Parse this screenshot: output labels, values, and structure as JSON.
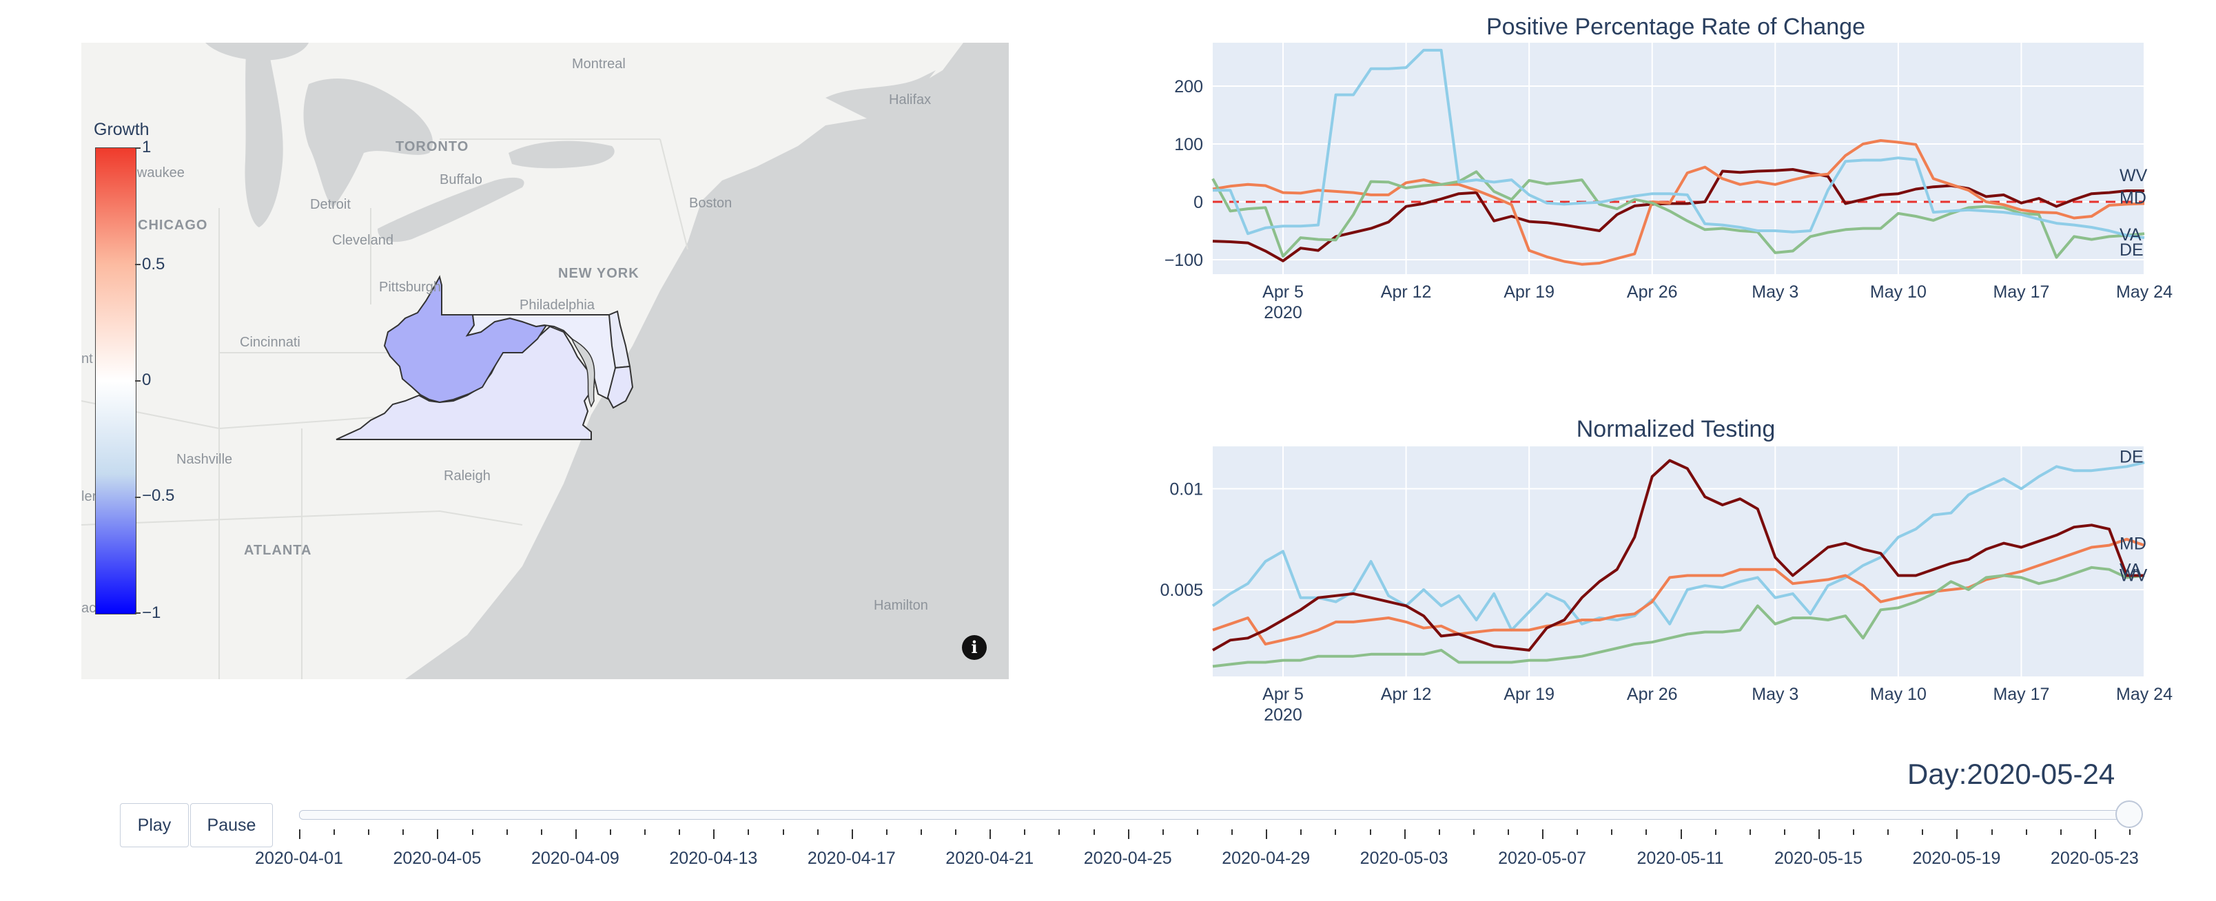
{
  "map": {
    "colorbar_title": "Growth",
    "colorbar_ticks": [
      "1",
      "0.5",
      "0",
      "−0.5",
      "−1"
    ],
    "colorscale": [
      "#ef3b2c",
      "#ffffff",
      "#0000ff"
    ],
    "cities": [
      {
        "name": "Montreal",
        "big": false
      },
      {
        "name": "Halifax",
        "big": false
      },
      {
        "name": "ilwaukee",
        "big": false
      },
      {
        "name": "TORONTO",
        "big": true
      },
      {
        "name": "Buffalo",
        "big": false
      },
      {
        "name": "Detroit",
        "big": false
      },
      {
        "name": "CHICAGO",
        "big": true
      },
      {
        "name": "Boston",
        "big": false
      },
      {
        "name": "Cleveland",
        "big": false
      },
      {
        "name": "Pittsburgh",
        "big": false
      },
      {
        "name": "NEW YORK",
        "big": true
      },
      {
        "name": "Philadelphia",
        "big": false
      },
      {
        "name": "Cincinnati",
        "big": false
      },
      {
        "name": "Nashville",
        "big": false
      },
      {
        "name": "Raleigh",
        "big": false
      },
      {
        "name": "ATLANTA",
        "big": true
      },
      {
        "name": "Hamilton",
        "big": false
      },
      {
        "name": "nt",
        "big": false
      },
      {
        "name": "ler",
        "big": false
      },
      {
        "name": "ac",
        "big": false
      }
    ],
    "info_icon": "i",
    "state_colors": {
      "WV": "#abaff8",
      "VA": "#e4e5fb",
      "MD": "#eceefc",
      "DE": "#e8eaf8"
    }
  },
  "chart_data": [
    {
      "type": "line",
      "title": "Positive Percentage Rate of Change",
      "x_dates": [
        "2020-04-01",
        "2020-04-02",
        "2020-04-03",
        "2020-04-04",
        "2020-04-05",
        "2020-04-06",
        "2020-04-07",
        "2020-04-08",
        "2020-04-09",
        "2020-04-10",
        "2020-04-11",
        "2020-04-12",
        "2020-04-13",
        "2020-04-14",
        "2020-04-15",
        "2020-04-16",
        "2020-04-17",
        "2020-04-18",
        "2020-04-19",
        "2020-04-20",
        "2020-04-21",
        "2020-04-22",
        "2020-04-23",
        "2020-04-24",
        "2020-04-25",
        "2020-04-26",
        "2020-04-27",
        "2020-04-28",
        "2020-04-29",
        "2020-04-30",
        "2020-05-01",
        "2020-05-02",
        "2020-05-03",
        "2020-05-04",
        "2020-05-05",
        "2020-05-06",
        "2020-05-07",
        "2020-05-08",
        "2020-05-09",
        "2020-05-10",
        "2020-05-11",
        "2020-05-12",
        "2020-05-13",
        "2020-05-14",
        "2020-05-15",
        "2020-05-16",
        "2020-05-17",
        "2020-05-18",
        "2020-05-19",
        "2020-05-20",
        "2020-05-21",
        "2020-05-22",
        "2020-05-23",
        "2020-05-24"
      ],
      "x_ticks": [
        "Apr 5",
        "Apr 12",
        "Apr 19",
        "Apr 26",
        "May 3",
        "May 10",
        "May 17",
        "May 24"
      ],
      "x_year": "2020",
      "y_ticks": [
        "200",
        "100",
        "0",
        "−100"
      ],
      "ylim": [
        -125,
        275
      ],
      "reference_line": {
        "y": 0,
        "color": "#e8322d",
        "style": "dashed"
      },
      "series": [
        {
          "name": "WV",
          "color": "#7a0c0c",
          "values": [
            -68,
            -69,
            -71,
            -85,
            -102,
            -80,
            -84,
            -60,
            -53,
            -46,
            -35,
            -8,
            -3,
            5,
            14,
            16,
            -33,
            -25,
            -34,
            -36,
            -40,
            -45,
            -50,
            -22,
            -7,
            -4,
            -3,
            -3,
            0,
            53,
            51,
            53,
            54,
            56,
            50,
            44,
            -3,
            4,
            12,
            14,
            22,
            26,
            28,
            23,
            9,
            12,
            -2,
            6,
            -8,
            4,
            14,
            16,
            19,
            19
          ]
        },
        {
          "name": "MD",
          "color": "#f07f52",
          "values": [
            22,
            27,
            30,
            28,
            16,
            15,
            20,
            18,
            16,
            12,
            12,
            33,
            38,
            30,
            30,
            20,
            8,
            -5,
            -84,
            -95,
            -103,
            -108,
            -106,
            -98,
            -90,
            0,
            -2,
            50,
            60,
            40,
            30,
            35,
            30,
            38,
            45,
            48,
            80,
            100,
            106,
            103,
            99,
            40,
            30,
            20,
            0,
            -5,
            -14,
            -18,
            -19,
            -28,
            -25,
            -6,
            -4,
            -3
          ]
        },
        {
          "name": "VA",
          "color": "#8cbf8b",
          "values": [
            40,
            -16,
            -12,
            -10,
            -94,
            -62,
            -65,
            -66,
            -22,
            35,
            34,
            24,
            28,
            30,
            35,
            52,
            18,
            4,
            37,
            31,
            34,
            38,
            -4,
            -12,
            4,
            -2,
            -16,
            -33,
            -48,
            -46,
            -50,
            -52,
            -88,
            -85,
            -60,
            -53,
            -48,
            -46,
            -46,
            -20,
            -25,
            -32,
            -20,
            -10,
            -8,
            -10,
            -20,
            -22,
            -96,
            -60,
            -65,
            -60,
            -58,
            -55
          ]
        },
        {
          "name": "DE",
          "color": "#8fcde8",
          "values": [
            20,
            20,
            -55,
            -45,
            -42,
            -42,
            -40,
            185,
            185,
            230,
            230,
            232,
            262,
            262,
            34,
            38,
            34,
            38,
            12,
            -2,
            -4,
            -2,
            -1,
            5,
            10,
            14,
            14,
            12,
            -38,
            -40,
            -44,
            -50,
            -50,
            -52,
            -50,
            20,
            70,
            72,
            72,
            76,
            73,
            -18,
            -16,
            -14,
            -16,
            -18,
            -22,
            -30,
            -37,
            -40,
            -44,
            -50,
            -58,
            -62
          ]
        }
      ]
    },
    {
      "type": "line",
      "title": "Normalized Testing",
      "x_dates": [
        "2020-04-01",
        "2020-04-02",
        "2020-04-03",
        "2020-04-04",
        "2020-04-05",
        "2020-04-06",
        "2020-04-07",
        "2020-04-08",
        "2020-04-09",
        "2020-04-10",
        "2020-04-11",
        "2020-04-12",
        "2020-04-13",
        "2020-04-14",
        "2020-04-15",
        "2020-04-16",
        "2020-04-17",
        "2020-04-18",
        "2020-04-19",
        "2020-04-20",
        "2020-04-21",
        "2020-04-22",
        "2020-04-23",
        "2020-04-24",
        "2020-04-25",
        "2020-04-26",
        "2020-04-27",
        "2020-04-28",
        "2020-04-29",
        "2020-04-30",
        "2020-05-01",
        "2020-05-02",
        "2020-05-03",
        "2020-05-04",
        "2020-05-05",
        "2020-05-06",
        "2020-05-07",
        "2020-05-08",
        "2020-05-09",
        "2020-05-10",
        "2020-05-11",
        "2020-05-12",
        "2020-05-13",
        "2020-05-14",
        "2020-05-15",
        "2020-05-16",
        "2020-05-17",
        "2020-05-18",
        "2020-05-19",
        "2020-05-20",
        "2020-05-21",
        "2020-05-22",
        "2020-05-23",
        "2020-05-24"
      ],
      "x_ticks": [
        "Apr 5",
        "Apr 12",
        "Apr 19",
        "Apr 26",
        "May 3",
        "May 10",
        "May 17",
        "May 24"
      ],
      "x_year": "2020",
      "y_ticks": [
        "0.01",
        "0.005"
      ],
      "ylim": [
        0.0007,
        0.0121
      ],
      "series": [
        {
          "name": "DE",
          "color": "#8fcde8",
          "values": [
            0.0042,
            0.0048,
            0.0053,
            0.0064,
            0.0069,
            0.0046,
            0.0046,
            0.0044,
            0.0049,
            0.0064,
            0.0047,
            0.0042,
            0.005,
            0.0042,
            0.0047,
            0.0035,
            0.0048,
            0.003,
            0.0039,
            0.0048,
            0.0044,
            0.0033,
            0.0036,
            0.0035,
            0.0037,
            0.0045,
            0.0033,
            0.005,
            0.0052,
            0.0051,
            0.0054,
            0.0056,
            0.0046,
            0.0048,
            0.0038,
            0.0052,
            0.0056,
            0.0062,
            0.0066,
            0.0076,
            0.008,
            0.0087,
            0.0088,
            0.0097,
            0.0101,
            0.0105,
            0.01,
            0.0106,
            0.0111,
            0.0109,
            0.0109,
            0.011,
            0.0111,
            0.0113
          ]
        },
        {
          "name": "MD",
          "color": "#f07f52",
          "values": [
            0.003,
            0.0033,
            0.0036,
            0.0023,
            0.0025,
            0.0027,
            0.003,
            0.0034,
            0.0034,
            0.0035,
            0.0036,
            0.0034,
            0.0031,
            0.0032,
            0.0028,
            0.0029,
            0.003,
            0.003,
            0.003,
            0.0032,
            0.0033,
            0.0035,
            0.0035,
            0.0037,
            0.0038,
            0.0044,
            0.0056,
            0.0057,
            0.0057,
            0.0057,
            0.006,
            0.006,
            0.006,
            0.0053,
            0.0054,
            0.0055,
            0.0057,
            0.0052,
            0.0044,
            0.0046,
            0.0048,
            0.0049,
            0.005,
            0.0051,
            0.0055,
            0.0057,
            0.0059,
            0.0062,
            0.0065,
            0.0068,
            0.0071,
            0.0072,
            0.0075,
            0.0072
          ]
        },
        {
          "name": "VA",
          "color": "#8cbf8b",
          "values": [
            0.0012,
            0.0013,
            0.0014,
            0.0014,
            0.0015,
            0.0015,
            0.0017,
            0.0017,
            0.0017,
            0.0018,
            0.0018,
            0.0018,
            0.0018,
            0.002,
            0.0014,
            0.0014,
            0.0014,
            0.0014,
            0.0015,
            0.0015,
            0.0016,
            0.0017,
            0.0019,
            0.0021,
            0.0023,
            0.0024,
            0.0026,
            0.0028,
            0.0029,
            0.0029,
            0.003,
            0.0042,
            0.0033,
            0.0036,
            0.0036,
            0.0035,
            0.0037,
            0.0026,
            0.004,
            0.0041,
            0.0044,
            0.0048,
            0.0054,
            0.005,
            0.0056,
            0.0057,
            0.0056,
            0.0053,
            0.0055,
            0.0058,
            0.0061,
            0.006,
            0.0056,
            0.0057
          ]
        },
        {
          "name": "WV",
          "color": "#7a0c0c",
          "values": [
            0.002,
            0.0025,
            0.0026,
            0.003,
            0.0035,
            0.004,
            0.0046,
            0.0047,
            0.0048,
            0.0046,
            0.0044,
            0.0042,
            0.0037,
            0.0027,
            0.0028,
            0.0025,
            0.0022,
            0.0021,
            0.002,
            0.0031,
            0.0035,
            0.0046,
            0.0054,
            0.006,
            0.0076,
            0.0106,
            0.0114,
            0.011,
            0.0096,
            0.0092,
            0.0095,
            0.009,
            0.0066,
            0.0057,
            0.0064,
            0.0071,
            0.0073,
            0.007,
            0.0068,
            0.0057,
            0.0057,
            0.006,
            0.0063,
            0.0065,
            0.007,
            0.0073,
            0.0071,
            0.0074,
            0.0077,
            0.0081,
            0.0082,
            0.008,
            0.0057,
            0.0057
          ]
        }
      ]
    }
  ],
  "controls": {
    "play_label": "Play",
    "pause_label": "Pause",
    "day_prefix": "Day:",
    "current_day": "2020-05-24",
    "slider_value": 1.0,
    "slider_labels": [
      "2020-04-01",
      "2020-04-05",
      "2020-04-09",
      "2020-04-13",
      "2020-04-17",
      "2020-04-21",
      "2020-04-25",
      "2020-04-29",
      "2020-05-03",
      "2020-05-07",
      "2020-05-11",
      "2020-05-15",
      "2020-05-19",
      "2020-05-23"
    ]
  }
}
